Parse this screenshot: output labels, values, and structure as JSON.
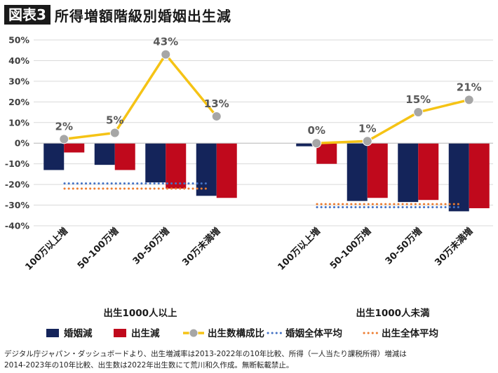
{
  "figure": {
    "badge": "図表3",
    "title": "所得増額階級別婚姻出生減"
  },
  "colors": {
    "marriage": "#14245a",
    "births": "#c0091c",
    "share_line": "#f5c315",
    "share_marker": "#a6a6a6",
    "marriage_avg": "#4472c4",
    "births_avg": "#ed7d31"
  },
  "chart_data": {
    "type": "bar",
    "ylim": [
      -40,
      50
    ],
    "yticks": [
      -40,
      -30,
      -20,
      -10,
      0,
      10,
      20,
      30,
      40,
      50
    ],
    "ytick_labels": [
      "-40%",
      "-30%",
      "-20%",
      "-10%",
      "0%",
      "10%",
      "20%",
      "30%",
      "40%",
      "50%"
    ],
    "legend": [
      "婚姻減",
      "出生減",
      "出生数構成比",
      "婚姻全体平均",
      "出生全体平均"
    ],
    "groups": [
      {
        "label": "出生1000人以上",
        "categories": [
          "100万以上増",
          "50-100万増",
          "30-50万増",
          "30万未満増"
        ],
        "marriage_decline": [
          -13,
          -10.5,
          -19,
          -25.5
        ],
        "birth_decline": [
          -4.5,
          -13,
          -22,
          -26.5
        ],
        "birth_share": [
          2,
          5,
          43,
          13
        ],
        "birth_share_labels": [
          "2%",
          "5%",
          "43%",
          "13%"
        ],
        "marriage_avg": -19.5,
        "birth_avg": -22
      },
      {
        "label": "出生1000人未満",
        "categories": [
          "100万以上増",
          "50-100万増",
          "30-50万増",
          "30万未満増"
        ],
        "marriage_decline": [
          -1.5,
          -28,
          -28.5,
          -33
        ],
        "birth_decline": [
          -10,
          -26.5,
          -27.5,
          -31.5
        ],
        "birth_share": [
          0,
          1,
          15,
          21
        ],
        "birth_share_labels": [
          "0%",
          "1%",
          "15%",
          "21%"
        ],
        "marriage_avg": -31,
        "birth_avg": -29.5
      }
    ]
  },
  "footnote": {
    "line1": "デジタル庁ジャパン・ダッシュボードより、出生増減率は2013-2022年の10年比較、所得（一人当たり課税所得）増減は",
    "line2": "2014-2023年の10年比較、出生数は2022年出生数にて荒川和久作成。無断転載禁止。"
  }
}
